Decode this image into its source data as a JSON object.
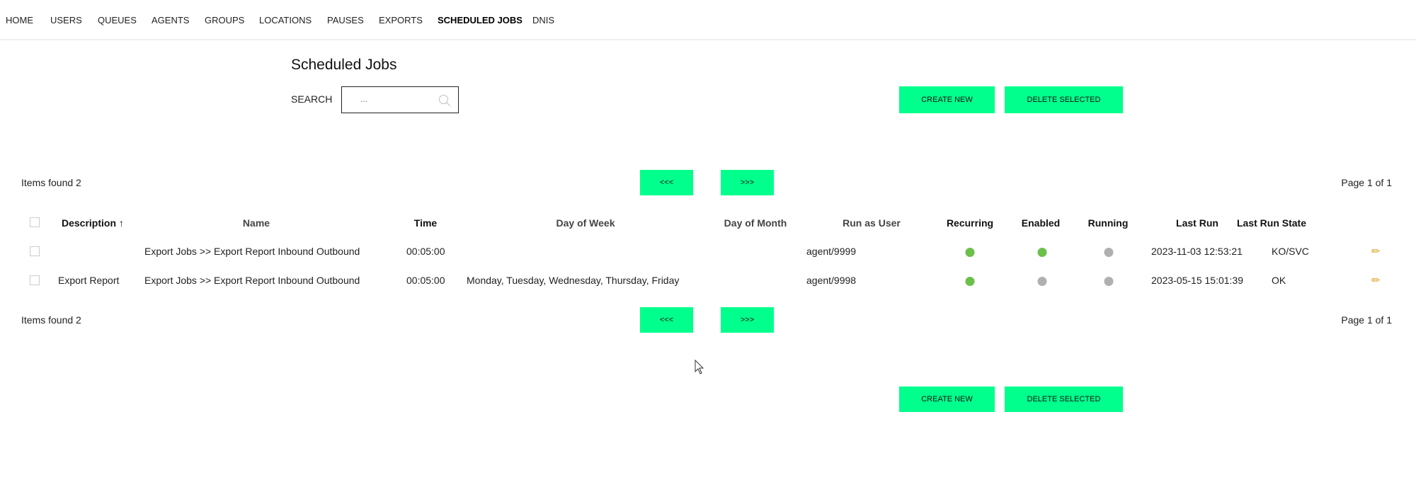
{
  "nav": {
    "items": [
      "HOME",
      "USERS",
      "QUEUES",
      "AGENTS",
      "GROUPS",
      "LOCATIONS",
      "PAUSES",
      "EXPORTS",
      "SCHEDULED JOBS",
      "DNIS"
    ],
    "active": "SCHEDULED JOBS"
  },
  "page": {
    "title": "Scheduled Jobs",
    "search_label": "SEARCH",
    "search_placeholder": "...",
    "create_label": "CREATE NEW",
    "delete_label": "DELETE SELECTED"
  },
  "pager": {
    "items_found": "Items found 2",
    "prev": "<<<",
    "next": ">>>",
    "page": "Page 1 of 1"
  },
  "colors": {
    "accent": "#00ff8c",
    "ok": "#6cc04a",
    "off": "#b0b0b0"
  },
  "table": {
    "headers": {
      "description": "Description",
      "sort": "↑",
      "name": "Name",
      "time": "Time",
      "day_of_week": "Day of Week",
      "day_of_month": "Day of Month",
      "run_as_user": "Run as User",
      "recurring": "Recurring",
      "enabled": "Enabled",
      "running": "Running",
      "last_run": "Last Run",
      "last_run_state": "Last Run State"
    },
    "rows": [
      {
        "description": "",
        "name": "Export Jobs >> Export Report Inbound Outbound",
        "time": "00:05:00",
        "day_of_week": "",
        "day_of_month": "",
        "run_as_user": "agent/9999",
        "recurring": true,
        "enabled": true,
        "running": false,
        "last_run": "2023-11-03 12:53:21",
        "last_run_state": "KO/SVC"
      },
      {
        "description": "Export Report",
        "name": "Export Jobs >> Export Report Inbound Outbound",
        "time": "00:05:00",
        "day_of_week": "Monday, Tuesday, Wednesday, Thursday, Friday",
        "day_of_month": "",
        "run_as_user": "agent/9998",
        "recurring": true,
        "enabled": false,
        "running": false,
        "last_run": "2023-05-15 15:01:39",
        "last_run_state": "OK"
      }
    ]
  }
}
